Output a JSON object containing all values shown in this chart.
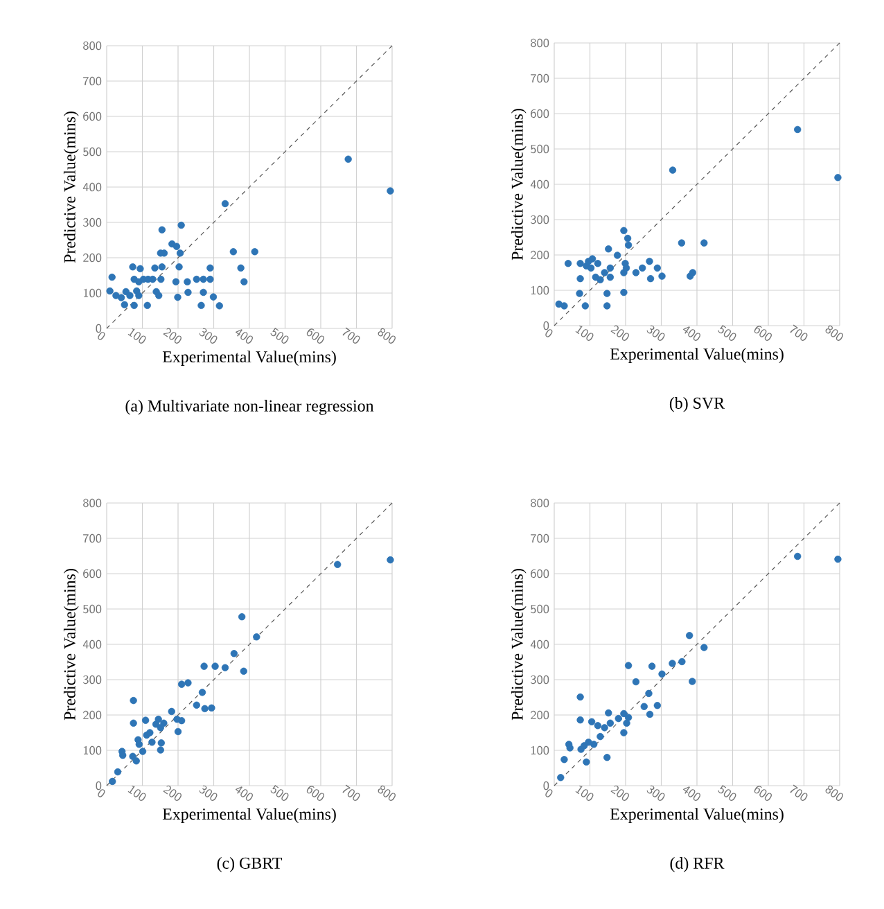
{
  "chart_data": [
    {
      "type": "scatter",
      "title": "(a) Multivariate non-linear regression",
      "xlabel": "Experimental Value(mins)",
      "ylabel": "Predictive Value(mins)",
      "xlim": [
        0,
        800
      ],
      "ylim": [
        0,
        800
      ],
      "xticks": [
        0,
        100,
        200,
        300,
        400,
        500,
        600,
        700,
        800
      ],
      "yticks": [
        0,
        100,
        200,
        300,
        400,
        500,
        600,
        700,
        800
      ],
      "grid": true,
      "series": [
        {
          "marker": "circle",
          "color": "#2e75b6",
          "x": [
            15,
            9,
            26,
            41,
            50,
            54,
            65,
            73,
            77,
            77,
            84,
            90,
            94,
            90,
            103,
            114,
            116,
            129,
            135,
            139,
            146,
            152,
            155,
            151,
            161,
            155,
            183,
            196,
            206,
            203,
            209,
            194,
            199,
            226,
            228,
            252,
            265,
            271,
            271,
            290,
            290,
            299,
            316,
            332,
            355,
            376,
            385,
            415,
            677,
            795
          ],
          "values": [
            145,
            106,
            93,
            87,
            67,
            104,
            93,
            174,
            65,
            139,
            106,
            93,
            169,
            132,
            139,
            65,
            139,
            139,
            171,
            104,
            93,
            139,
            174,
            213,
            213,
            279,
            239,
            232,
            213,
            174,
            292,
            132,
            88,
            132,
            102,
            139,
            65,
            102,
            139,
            171,
            139,
            89,
            64,
            353,
            217,
            171,
            132,
            217,
            479,
            389
          ]
        },
        {
          "type": "line",
          "line_style": "dashed",
          "marker": "none",
          "color": "#595959",
          "x": [
            0,
            800
          ],
          "values": [
            0,
            800
          ]
        }
      ]
    },
    {
      "type": "scatter",
      "title": "(b) SVR",
      "xlabel": "Experimental Value(mins)",
      "ylabel": "Predictive Value(mins)",
      "xlim": [
        0,
        800
      ],
      "ylim": [
        0,
        800
      ],
      "xticks": [
        0,
        100,
        200,
        300,
        400,
        500,
        600,
        700,
        800
      ],
      "yticks": [
        0,
        100,
        200,
        300,
        400,
        500,
        600,
        700,
        800
      ],
      "grid": true,
      "series": [
        {
          "marker": "circle",
          "color": "#2e75b6",
          "x": [
            13,
            28,
            39,
            71,
            73,
            73,
            87,
            90,
            96,
            103,
            107,
            116,
            122,
            129,
            141,
            148,
            148,
            152,
            157,
            157,
            177,
            195,
            195,
            199,
            195,
            202,
            206,
            208,
            229,
            247,
            267,
            270,
            289,
            302,
            332,
            357,
            381,
            388,
            420,
            682,
            795
          ],
          "values": [
            61,
            56,
            176,
            91,
            133,
            176,
            56,
            169,
            182,
            163,
            189,
            137,
            176,
            130,
            150,
            91,
            56,
            217,
            163,
            137,
            199,
            269,
            94,
            176,
            150,
            163,
            247,
            228,
            150,
            163,
            182,
            133,
            163,
            140,
            440,
            234,
            140,
            150,
            234,
            555,
            419
          ]
        },
        {
          "type": "line",
          "line_style": "dashed",
          "marker": "none",
          "color": "#595959",
          "x": [
            0,
            800
          ],
          "values": [
            0,
            800
          ]
        }
      ]
    },
    {
      "type": "scatter",
      "title": "(c) GBRT",
      "xlabel": "Experimental Value(mins)",
      "ylabel": "Predictive Value(mins)",
      "xlim": [
        0,
        800
      ],
      "ylim": [
        0,
        800
      ],
      "xticks": [
        0,
        100,
        200,
        300,
        400,
        500,
        600,
        700,
        800
      ],
      "yticks": [
        0,
        100,
        200,
        300,
        400,
        500,
        600,
        700,
        800
      ],
      "grid": true,
      "series": [
        {
          "marker": "circle",
          "color": "#2e75b6",
          "x": [
            16,
            31,
            43,
            45,
            73,
            75,
            75,
            83,
            88,
            91,
            101,
            109,
            112,
            121,
            127,
            138,
            145,
            151,
            151,
            153,
            160,
            182,
            200,
            197,
            210,
            210,
            228,
            252,
            268,
            273,
            275,
            294,
            304,
            332,
            357,
            379,
            384,
            420,
            647,
            795
          ],
          "values": [
            12,
            39,
            97,
            86,
            83,
            177,
            241,
            70,
            130,
            117,
            97,
            185,
            143,
            150,
            123,
            174,
            188,
            164,
            101,
            121,
            177,
            210,
            153,
            188,
            184,
            287,
            291,
            228,
            264,
            338,
            218,
            220,
            338,
            334,
            374,
            478,
            324,
            421,
            626,
            639
          ]
        },
        {
          "type": "line",
          "line_style": "dashed",
          "marker": "none",
          "color": "#595959",
          "x": [
            0,
            800
          ],
          "values": [
            0,
            800
          ]
        }
      ]
    },
    {
      "type": "scatter",
      "title": "(d) RFR",
      "xlabel": "Experimental Value(mins)",
      "ylabel": "Predictive Value(mins)",
      "xlim": [
        0,
        800
      ],
      "ylim": [
        0,
        800
      ],
      "xticks": [
        0,
        100,
        200,
        300,
        400,
        500,
        600,
        700,
        800
      ],
      "yticks": [
        0,
        100,
        200,
        300,
        400,
        500,
        600,
        700,
        800
      ],
      "grid": true,
      "series": [
        {
          "marker": "circle",
          "color": "#2e75b6",
          "x": [
            18,
            28,
            41,
            44,
            73,
            73,
            75,
            90,
            84,
            96,
            105,
            111,
            122,
            129,
            141,
            148,
            152,
            157,
            180,
            195,
            195,
            203,
            208,
            208,
            229,
            252,
            265,
            268,
            274,
            289,
            302,
            331,
            358,
            379,
            387,
            420,
            682,
            795
          ],
          "values": [
            23,
            74,
            117,
            107,
            186,
            251,
            103,
            67,
            113,
            123,
            181,
            117,
            170,
            139,
            164,
            80,
            206,
            177,
            190,
            204,
            150,
            177,
            193,
            340,
            294,
            224,
            261,
            202,
            338,
            227,
            316,
            346,
            351,
            425,
            295,
            391,
            649,
            641
          ]
        },
        {
          "type": "line",
          "line_style": "dashed",
          "marker": "none",
          "color": "#595959",
          "x": [
            0,
            800
          ],
          "values": [
            0,
            800
          ]
        }
      ]
    }
  ]
}
